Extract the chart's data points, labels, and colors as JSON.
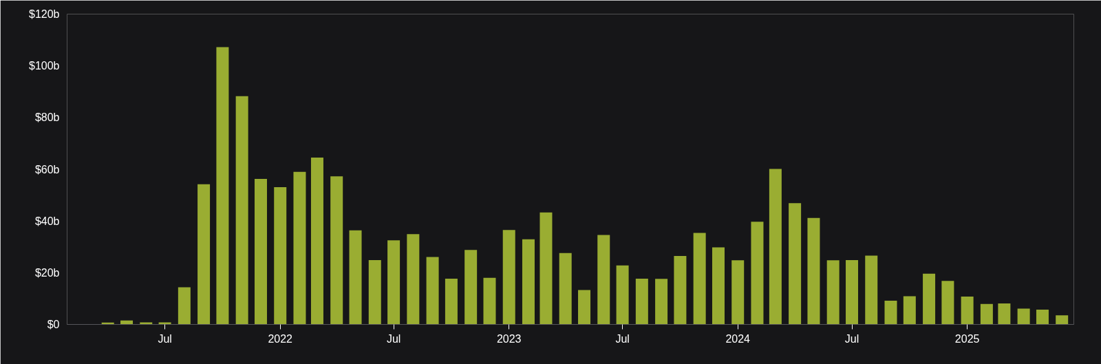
{
  "chart_data": {
    "type": "bar",
    "x": [
      "2021-04",
      "2021-05",
      "2021-06",
      "2021-07",
      "2021-08",
      "2021-09",
      "2021-10",
      "2021-11",
      "2021-12",
      "2022-01",
      "2022-02",
      "2022-03",
      "2022-04",
      "2022-05",
      "2022-06",
      "2022-07",
      "2022-08",
      "2022-09",
      "2022-10",
      "2022-11",
      "2022-12",
      "2023-01",
      "2023-02",
      "2023-03",
      "2023-04",
      "2023-05",
      "2023-06",
      "2023-07",
      "2023-08",
      "2023-09",
      "2023-10",
      "2023-11",
      "2023-12",
      "2024-01",
      "2024-02",
      "2024-03",
      "2024-04",
      "2024-05",
      "2024-06",
      "2024-07",
      "2024-08",
      "2024-09",
      "2024-10",
      "2024-11",
      "2024-12",
      "2025-01",
      "2025-02",
      "2025-03",
      "2025-04",
      "2025-05",
      "2025-06"
    ],
    "values": [
      0.7,
      1.5,
      0.8,
      0.8,
      14.4,
      54.2,
      107.2,
      88.3,
      56.3,
      53.1,
      59.0,
      64.5,
      57.3,
      36.4,
      24.9,
      32.5,
      34.9,
      26.1,
      17.7,
      28.8,
      18.0,
      36.5,
      32.9,
      43.3,
      27.6,
      13.3,
      34.6,
      22.8,
      17.7,
      17.6,
      26.5,
      35.4,
      29.8,
      24.8,
      39.7,
      60.1,
      46.9,
      41.2,
      24.8,
      24.9,
      26.6,
      9.2,
      10.9,
      19.6,
      16.8,
      10.8,
      7.9,
      8.1,
      6.1,
      5.7,
      3.5
    ],
    "color": "#9aad32",
    "xlim": [
      "2021-01-26",
      "2025-06-20"
    ],
    "xticks": [
      {
        "value": "2021-07",
        "label": "Jul"
      },
      {
        "value": "2022-01",
        "label": "2022"
      },
      {
        "value": "2022-07",
        "label": "Jul"
      },
      {
        "value": "2023-01",
        "label": "2023"
      },
      {
        "value": "2023-07",
        "label": "Jul"
      },
      {
        "value": "2024-01",
        "label": "2024"
      },
      {
        "value": "2024-07",
        "label": "Jul"
      },
      {
        "value": "2025-01",
        "label": "2025"
      }
    ],
    "ylim": [
      0,
      120
    ],
    "yticks": [
      {
        "value": 0,
        "label": "$0"
      },
      {
        "value": 20,
        "label": "$20b"
      },
      {
        "value": 40,
        "label": "$40b"
      },
      {
        "value": 60,
        "label": "$60b"
      },
      {
        "value": 80,
        "label": "$80b"
      },
      {
        "value": 100,
        "label": "$100b"
      },
      {
        "value": 120,
        "label": "$120b"
      }
    ],
    "grid": false
  }
}
